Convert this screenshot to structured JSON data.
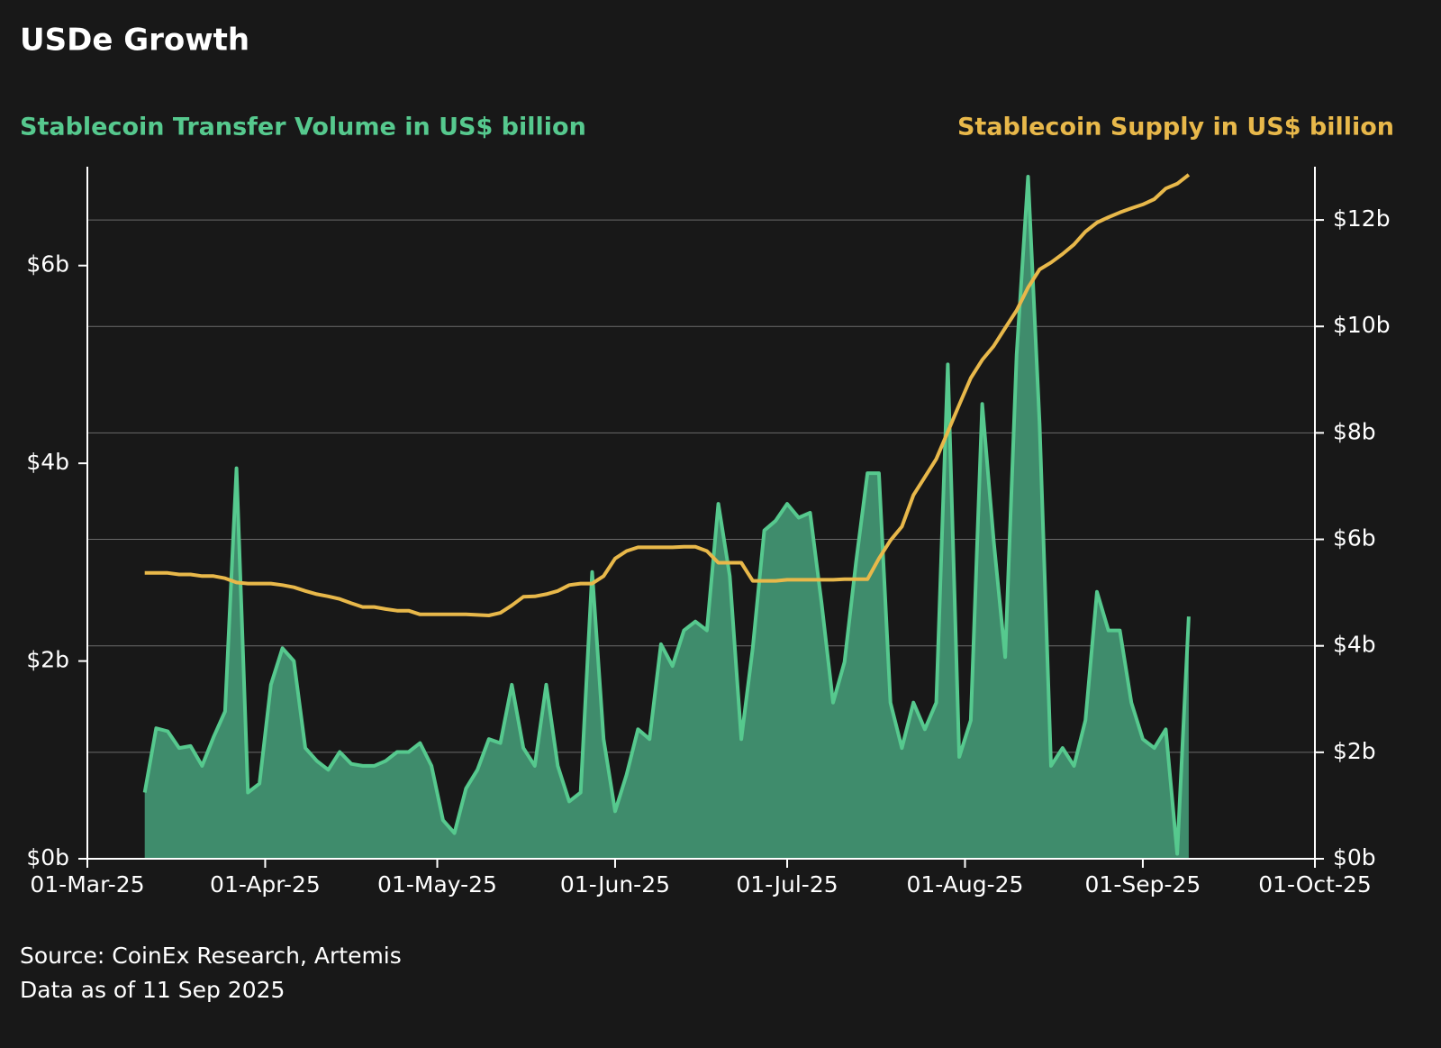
{
  "chart_data": {
    "type": "area-line",
    "title": "USDe Growth",
    "source": "Source: CoinEx Research, Artemis",
    "note": "Data as of 11 Sep 2025",
    "x": [
      "2025-03-11",
      "2025-03-13",
      "2025-03-15",
      "2025-03-17",
      "2025-03-19",
      "2025-03-21",
      "2025-03-23",
      "2025-03-25",
      "2025-03-27",
      "2025-03-29",
      "2025-03-31",
      "2025-04-02",
      "2025-04-04",
      "2025-04-06",
      "2025-04-08",
      "2025-04-10",
      "2025-04-12",
      "2025-04-14",
      "2025-04-16",
      "2025-04-18",
      "2025-04-20",
      "2025-04-22",
      "2025-04-24",
      "2025-04-26",
      "2025-04-28",
      "2025-04-30",
      "2025-05-02",
      "2025-05-04",
      "2025-05-06",
      "2025-05-08",
      "2025-05-10",
      "2025-05-12",
      "2025-05-14",
      "2025-05-16",
      "2025-05-18",
      "2025-05-20",
      "2025-05-22",
      "2025-05-24",
      "2025-05-26",
      "2025-05-28",
      "2025-05-30",
      "2025-06-01",
      "2025-06-03",
      "2025-06-05",
      "2025-06-07",
      "2025-06-09",
      "2025-06-11",
      "2025-06-13",
      "2025-06-15",
      "2025-06-17",
      "2025-06-19",
      "2025-06-21",
      "2025-06-23",
      "2025-06-25",
      "2025-06-27",
      "2025-06-29",
      "2025-07-01",
      "2025-07-03",
      "2025-07-05",
      "2025-07-07",
      "2025-07-09",
      "2025-07-11",
      "2025-07-13",
      "2025-07-15",
      "2025-07-17",
      "2025-07-19",
      "2025-07-21",
      "2025-07-23",
      "2025-07-25",
      "2025-07-27",
      "2025-07-29",
      "2025-07-31",
      "2025-08-02",
      "2025-08-04",
      "2025-08-06",
      "2025-08-08",
      "2025-08-10",
      "2025-08-12",
      "2025-08-14",
      "2025-08-16",
      "2025-08-18",
      "2025-08-20",
      "2025-08-22",
      "2025-08-24",
      "2025-08-26",
      "2025-08-28",
      "2025-08-30",
      "2025-09-01",
      "2025-09-03",
      "2025-09-05",
      "2025-09-07",
      "2025-09-09"
    ],
    "series": [
      {
        "name": "Stablecoin Transfer Volume in US$ billion",
        "type": "area",
        "color": "#56c98e",
        "fill": "#3f8c6c",
        "values": [
          0.67,
          1.32,
          1.29,
          1.12,
          1.14,
          0.94,
          1.23,
          1.49,
          3.95,
          0.67,
          0.76,
          1.76,
          2.13,
          2.0,
          1.12,
          0.99,
          0.9,
          1.08,
          0.96,
          0.94,
          0.94,
          0.99,
          1.08,
          1.08,
          1.17,
          0.94,
          0.39,
          0.26,
          0.71,
          0.9,
          1.21,
          1.17,
          1.76,
          1.12,
          0.94,
          1.76,
          0.94,
          0.58,
          0.67,
          2.9,
          1.21,
          0.48,
          0.85,
          1.31,
          1.21,
          2.17,
          1.95,
          2.31,
          2.4,
          2.31,
          3.59,
          2.86,
          1.21,
          2.13,
          3.32,
          3.42,
          3.59,
          3.45,
          3.5,
          2.58,
          1.58,
          1.99,
          3.0,
          3.9,
          3.9,
          1.58,
          1.12,
          1.58,
          1.31,
          1.58,
          5.0,
          1.03,
          1.4,
          4.6,
          3.22,
          2.04,
          5.1,
          6.9,
          4.4,
          0.94,
          1.12,
          0.94,
          1.4,
          2.7,
          2.31,
          2.31,
          1.58,
          1.21,
          1.12,
          1.31,
          0.05,
          2.45
        ]
      },
      {
        "name": "Stablecoin Supply in US$ billion",
        "type": "line",
        "axis": "y2",
        "color": "#e8b84a",
        "values": [
          5.37,
          5.37,
          5.37,
          5.34,
          5.34,
          5.31,
          5.31,
          5.27,
          5.19,
          5.17,
          5.17,
          5.17,
          5.14,
          5.1,
          5.03,
          4.97,
          4.93,
          4.88,
          4.8,
          4.73,
          4.73,
          4.69,
          4.66,
          4.66,
          4.59,
          4.59,
          4.59,
          4.59,
          4.59,
          4.58,
          4.57,
          4.62,
          4.76,
          4.92,
          4.93,
          4.97,
          5.03,
          5.14,
          5.17,
          5.17,
          5.31,
          5.64,
          5.78,
          5.85,
          5.85,
          5.85,
          5.85,
          5.86,
          5.86,
          5.78,
          5.56,
          5.56,
          5.56,
          5.22,
          5.22,
          5.22,
          5.24,
          5.24,
          5.24,
          5.24,
          5.24,
          5.25,
          5.25,
          5.25,
          5.64,
          5.98,
          6.24,
          6.83,
          7.17,
          7.51,
          8.02,
          8.53,
          9.03,
          9.37,
          9.63,
          9.97,
          10.3,
          10.73,
          11.07,
          11.2,
          11.36,
          11.54,
          11.78,
          11.95,
          12.05,
          12.14,
          12.22,
          12.29,
          12.39,
          12.59,
          12.68,
          12.85
        ]
      }
    ],
    "xlim": [
      "2025-03-01",
      "2025-10-01"
    ],
    "xticks": [
      {
        "value": "2025-03-01",
        "label": "01-Mar-25"
      },
      {
        "value": "2025-04-01",
        "label": "01-Apr-25"
      },
      {
        "value": "2025-05-01",
        "label": "01-May-25"
      },
      {
        "value": "2025-06-01",
        "label": "01-Jun-25"
      },
      {
        "value": "2025-07-01",
        "label": "01-Jul-25"
      },
      {
        "value": "2025-08-01",
        "label": "01-Aug-25"
      },
      {
        "value": "2025-09-01",
        "label": "01-Sep-25"
      },
      {
        "value": "2025-10-01",
        "label": "01-Oct-25"
      }
    ],
    "ylim": [
      0,
      7
    ],
    "yticks": [
      {
        "value": 0,
        "label": "$0b"
      },
      {
        "value": 2,
        "label": "$2b"
      },
      {
        "value": 4,
        "label": "$4b"
      },
      {
        "value": 6,
        "label": "$6b"
      }
    ],
    "y2lim": [
      0,
      13
    ],
    "y2ticks": [
      {
        "value": 0,
        "label": "$0b"
      },
      {
        "value": 2,
        "label": "$2b"
      },
      {
        "value": 4,
        "label": "$4b"
      },
      {
        "value": 6,
        "label": "$6b"
      },
      {
        "value": 8,
        "label": "$8b"
      },
      {
        "value": 10,
        "label": "$10b"
      },
      {
        "value": 12,
        "label": "$12b"
      }
    ],
    "grid": "y2"
  }
}
